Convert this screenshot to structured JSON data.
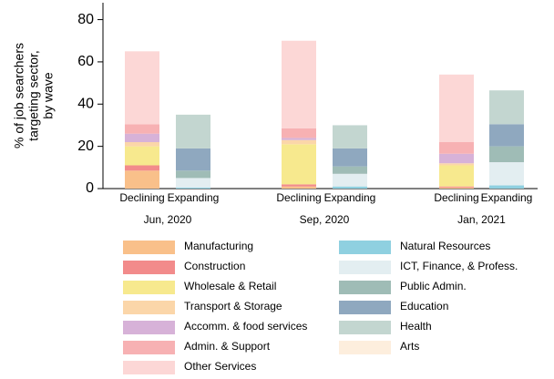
{
  "chart_data": {
    "type": "stacked-bar",
    "ylabel": [
      "% of job searchers",
      "targeting sector,",
      "by wave"
    ],
    "categories": [
      "Declining",
      "Expanding",
      "Declining",
      "Expanding",
      "Declining",
      "Expanding"
    ],
    "groups": [
      "Jun, 2020",
      "Sep, 2020",
      "Jan, 2021"
    ],
    "ylim": [
      0,
      88
    ],
    "yticks": [
      0,
      20,
      40,
      60,
      80
    ],
    "series": [
      {
        "name": "Manufacturing",
        "color": "#f9c08a",
        "values": [
          8.5,
          null,
          1,
          null,
          0.5,
          null
        ]
      },
      {
        "name": "Construction",
        "color": "#f28b8b",
        "values": [
          2.5,
          null,
          1,
          null,
          0.5,
          null
        ]
      },
      {
        "name": "Wholesale & Retail",
        "color": "#f7e98e",
        "values": [
          9,
          null,
          19,
          null,
          10,
          null
        ]
      },
      {
        "name": "Transport & Storage",
        "color": "#fbd6a9",
        "values": [
          2,
          null,
          2,
          null,
          1,
          null
        ]
      },
      {
        "name": "Accomm. & food services",
        "color": "#d7b2d8",
        "values": [
          4,
          null,
          1,
          null,
          4.5,
          null
        ]
      },
      {
        "name": "Admin. & Support",
        "color": "#f7b1b3",
        "values": [
          4.5,
          null,
          4.5,
          null,
          5.5,
          null
        ]
      },
      {
        "name": "Other Services",
        "color": "#fcd7d6",
        "values": [
          34.5,
          null,
          41.5,
          null,
          32,
          null
        ]
      },
      {
        "name": "Natural Resources",
        "color": "#8fd0e0",
        "values": [
          null,
          0.5,
          null,
          1,
          null,
          1.5
        ]
      },
      {
        "name": "ICT, Finance, & Profess.",
        "color": "#e3eef1",
        "values": [
          null,
          4.5,
          null,
          6,
          null,
          11
        ]
      },
      {
        "name": "Public Admin.",
        "color": "#9fbcb6",
        "values": [
          null,
          3.5,
          null,
          3.5,
          null,
          7.5
        ]
      },
      {
        "name": "Education",
        "color": "#8fa8bf",
        "values": [
          null,
          10.5,
          null,
          8.5,
          null,
          10.5
        ]
      },
      {
        "name": "Health",
        "color": "#c3d6d0",
        "values": [
          null,
          16,
          null,
          11,
          null,
          16
        ]
      },
      {
        "name": "Arts",
        "color": "#fdeedd",
        "values": [
          null,
          0,
          null,
          0,
          null,
          0
        ]
      }
    ]
  }
}
